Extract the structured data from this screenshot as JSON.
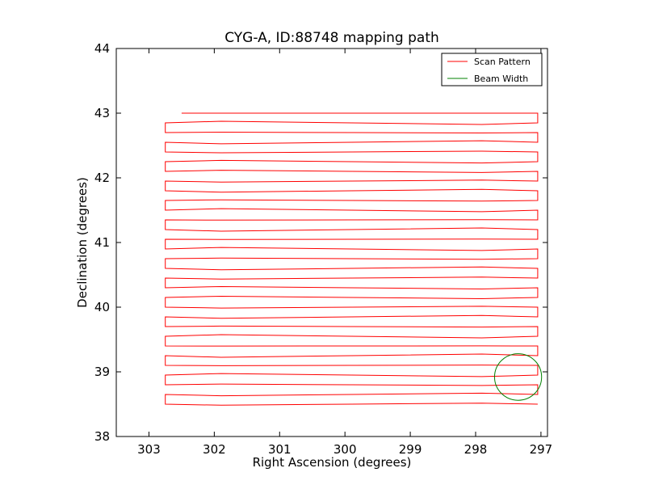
{
  "chart_data": {
    "type": "line",
    "title": "CYG-A, ID:88748 mapping path",
    "xlabel": "Right Ascension (degrees)",
    "ylabel": "Declination (degrees)",
    "x_inverted": true,
    "xlim": [
      303.5,
      296.9
    ],
    "ylim": [
      38,
      44
    ],
    "xticks": [
      303,
      302,
      301,
      300,
      299,
      298,
      297
    ],
    "yticks": [
      38,
      39,
      40,
      41,
      42,
      43,
      44
    ],
    "grid": false,
    "legend_position": "top-right",
    "series": [
      {
        "name": "Scan Pattern",
        "color": "#ff0000",
        "style": "raster",
        "top_dec": 43.0,
        "bottom_dec": 38.5,
        "row_step": 0.15,
        "ra_left": 302.75,
        "ra_right": 297.05,
        "ra_start": 302.5
      },
      {
        "name": "Beam Width",
        "color": "#008000",
        "style": "circle",
        "center_ra": 297.35,
        "center_dec": 38.92,
        "radius_deg": 0.36
      }
    ]
  }
}
